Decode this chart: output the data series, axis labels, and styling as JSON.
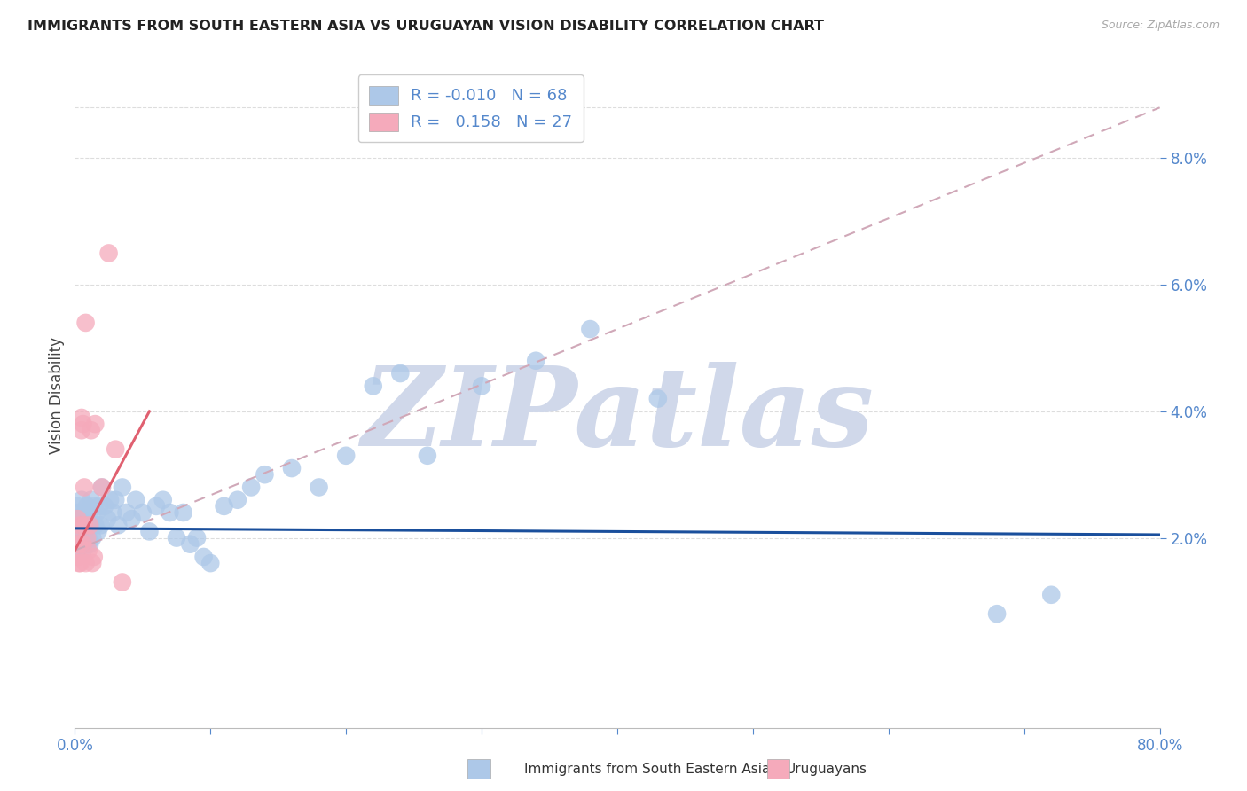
{
  "title": "IMMIGRANTS FROM SOUTH EASTERN ASIA VS URUGUAYAN VISION DISABILITY CORRELATION CHART",
  "source": "Source: ZipAtlas.com",
  "ylabel": "Vision Disability",
  "legend_blue_r": "-0.010",
  "legend_blue_n": "68",
  "legend_pink_r": "0.158",
  "legend_pink_n": "27",
  "blue_color": "#adc8e8",
  "pink_color": "#f5aabb",
  "trend_blue_color": "#1a4f9c",
  "trend_pink_solid_color": "#e06070",
  "trend_pink_dash_color": "#d0a8b8",
  "axis_label_color": "#5588cc",
  "tick_color": "#5588cc",
  "grid_color": "#dddddd",
  "watermark_color": "#d0d8ea",
  "watermark_text": "ZIPatlas",
  "xlim": [
    0.0,
    0.8
  ],
  "ylim": [
    -0.01,
    0.095
  ],
  "ytick_vals": [
    0.02,
    0.04,
    0.06,
    0.08
  ],
  "ytick_labels": [
    "2.0%",
    "4.0%",
    "6.0%",
    "8.0%"
  ],
  "xtick_show": [
    0.0,
    0.8
  ],
  "xtick_labels": [
    "0.0%",
    "80.0%"
  ],
  "blue_scatter_x": [
    0.001,
    0.002,
    0.002,
    0.003,
    0.003,
    0.004,
    0.004,
    0.005,
    0.005,
    0.006,
    0.006,
    0.007,
    0.007,
    0.008,
    0.008,
    0.009,
    0.009,
    0.01,
    0.01,
    0.011,
    0.011,
    0.012,
    0.012,
    0.013,
    0.014,
    0.015,
    0.016,
    0.017,
    0.018,
    0.019,
    0.02,
    0.022,
    0.024,
    0.026,
    0.028,
    0.03,
    0.032,
    0.035,
    0.038,
    0.042,
    0.045,
    0.05,
    0.055,
    0.06,
    0.065,
    0.07,
    0.075,
    0.08,
    0.085,
    0.09,
    0.095,
    0.1,
    0.11,
    0.12,
    0.13,
    0.14,
    0.16,
    0.18,
    0.2,
    0.22,
    0.24,
    0.26,
    0.3,
    0.34,
    0.38,
    0.43,
    0.68,
    0.72
  ],
  "blue_scatter_y": [
    0.022,
    0.025,
    0.018,
    0.024,
    0.02,
    0.023,
    0.019,
    0.021,
    0.026,
    0.022,
    0.018,
    0.024,
    0.02,
    0.021,
    0.024,
    0.019,
    0.025,
    0.022,
    0.02,
    0.023,
    0.019,
    0.022,
    0.026,
    0.02,
    0.025,
    0.022,
    0.024,
    0.021,
    0.025,
    0.022,
    0.028,
    0.025,
    0.023,
    0.026,
    0.024,
    0.026,
    0.022,
    0.028,
    0.024,
    0.023,
    0.026,
    0.024,
    0.021,
    0.025,
    0.026,
    0.024,
    0.02,
    0.024,
    0.019,
    0.02,
    0.017,
    0.016,
    0.025,
    0.026,
    0.028,
    0.03,
    0.031,
    0.028,
    0.033,
    0.044,
    0.046,
    0.033,
    0.044,
    0.048,
    0.053,
    0.042,
    0.008,
    0.011
  ],
  "pink_scatter_x": [
    0.001,
    0.001,
    0.002,
    0.002,
    0.003,
    0.003,
    0.004,
    0.004,
    0.005,
    0.005,
    0.006,
    0.006,
    0.007,
    0.007,
    0.008,
    0.008,
    0.009,
    0.01,
    0.011,
    0.012,
    0.013,
    0.014,
    0.015,
    0.02,
    0.025,
    0.03,
    0.035
  ],
  "pink_scatter_y": [
    0.021,
    0.019,
    0.023,
    0.017,
    0.019,
    0.016,
    0.022,
    0.016,
    0.039,
    0.037,
    0.038,
    0.019,
    0.028,
    0.022,
    0.054,
    0.016,
    0.02,
    0.018,
    0.022,
    0.037,
    0.016,
    0.017,
    0.038,
    0.028,
    0.065,
    0.034,
    0.013
  ],
  "blue_trend_x": [
    0.0,
    0.8
  ],
  "blue_trend_y": [
    0.0215,
    0.0205
  ],
  "pink_dash_trend_x": [
    0.0,
    0.8
  ],
  "pink_dash_trend_y": [
    0.018,
    0.088
  ],
  "pink_solid_trend_x": [
    0.0,
    0.055
  ],
  "pink_solid_trend_y": [
    0.018,
    0.04
  ]
}
